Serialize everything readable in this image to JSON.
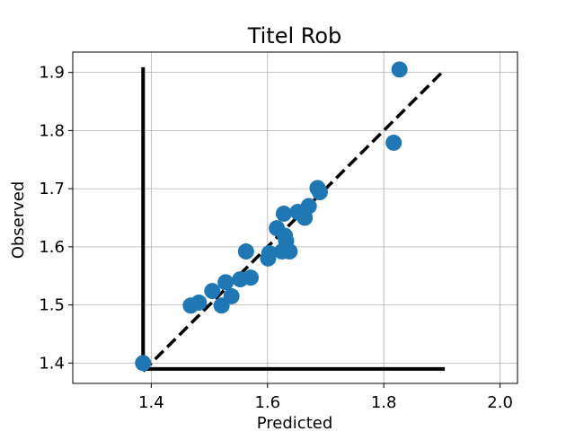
{
  "chart_data": {
    "type": "scatter",
    "title": "Titel Rob",
    "xlabel": "Predicted",
    "ylabel": "Observed",
    "xlim": [
      1.265,
      2.03
    ],
    "ylim": [
      1.365,
      1.935
    ],
    "xticks": [
      "1.4",
      "1.6",
      "1.8",
      "2.0"
    ],
    "yticks": [
      "1.4",
      "1.5",
      "1.6",
      "1.7",
      "1.8",
      "1.9"
    ],
    "grid": true,
    "marker_color": "#1f77b4",
    "line_color": "#000000",
    "points": [
      {
        "x": 1.386,
        "y": 1.4
      },
      {
        "x": 1.468,
        "y": 1.499
      },
      {
        "x": 1.482,
        "y": 1.504
      },
      {
        "x": 1.505,
        "y": 1.524
      },
      {
        "x": 1.521,
        "y": 1.499
      },
      {
        "x": 1.528,
        "y": 1.539
      },
      {
        "x": 1.538,
        "y": 1.515
      },
      {
        "x": 1.553,
        "y": 1.544
      },
      {
        "x": 1.563,
        "y": 1.592
      },
      {
        "x": 1.571,
        "y": 1.547
      },
      {
        "x": 1.601,
        "y": 1.58
      },
      {
        "x": 1.603,
        "y": 1.589
      },
      {
        "x": 1.616,
        "y": 1.632
      },
      {
        "x": 1.625,
        "y": 1.592
      },
      {
        "x": 1.628,
        "y": 1.657
      },
      {
        "x": 1.63,
        "y": 1.619
      },
      {
        "x": 1.632,
        "y": 1.61
      },
      {
        "x": 1.638,
        "y": 1.592
      },
      {
        "x": 1.652,
        "y": 1.66
      },
      {
        "x": 1.664,
        "y": 1.65
      },
      {
        "x": 1.671,
        "y": 1.67
      },
      {
        "x": 1.686,
        "y": 1.701
      },
      {
        "x": 1.69,
        "y": 1.694
      },
      {
        "x": 1.817,
        "y": 1.779
      },
      {
        "x": 1.827,
        "y": 1.905
      }
    ],
    "identity_line": {
      "x": [
        1.386,
        1.905
      ],
      "y": [
        1.386,
        1.905
      ]
    },
    "vertical_bar": {
      "x": 1.386,
      "y": [
        1.4,
        1.909
      ]
    },
    "horizontal_bar": {
      "x": [
        1.386,
        1.905
      ],
      "y": 1.39
    }
  }
}
